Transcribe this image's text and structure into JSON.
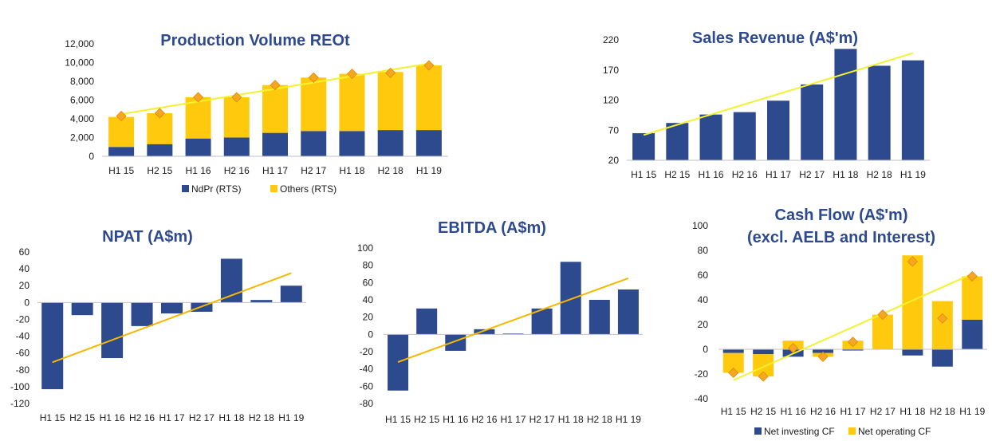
{
  "colors": {
    "navy": "#2E4A8F",
    "gold": "#FFC90E",
    "trend_yellow": "#F2F22E",
    "trend_orange": "#F5B800",
    "marker": "#F5A623"
  },
  "chart_data": [
    {
      "id": "production",
      "type": "bar",
      "stacked": true,
      "title": "Production Volume REOt",
      "categories": [
        "H1 15",
        "H2 15",
        "H1 16",
        "H2 16",
        "H1 17",
        "H2 17",
        "H1 18",
        "H2 18",
        "H1 19"
      ],
      "series": [
        {
          "name": "NdPr (RTS)",
          "color": "#2E4A8F",
          "values": [
            1000,
            1300,
            1900,
            2000,
            2500,
            2700,
            2700,
            2800,
            2800
          ]
        },
        {
          "name": "Others (RTS)",
          "color": "#FFC90E",
          "values": [
            3200,
            3300,
            4400,
            4300,
            5100,
            5700,
            6100,
            6200,
            6900
          ]
        }
      ],
      "markers": [
        4300,
        4600,
        6300,
        6300,
        7600,
        8400,
        8800,
        8900,
        9700
      ],
      "trend": [
        4500,
        9900
      ],
      "ylim": [
        0,
        12000
      ],
      "yticks": [
        "12,000",
        "10,000",
        "8,000",
        "6,000",
        "4,000",
        "2,000",
        "0"
      ],
      "ytick_values": [
        12000,
        10000,
        8000,
        6000,
        4000,
        2000,
        0
      ],
      "legend_position": "bottom"
    },
    {
      "id": "sales",
      "type": "bar",
      "title": "Sales Revenue (A$'m)",
      "categories": [
        "H1 15",
        "H2 15",
        "H1 16",
        "H2 16",
        "H1 17",
        "H2 17",
        "H1 18",
        "H2 18",
        "H1 19"
      ],
      "values": [
        65,
        82,
        96,
        100,
        119,
        146,
        205,
        177,
        186
      ],
      "trend": [
        62,
        198
      ],
      "ylim": [
        20,
        220
      ],
      "yticks": [
        "220",
        "170",
        "120",
        "70",
        "20"
      ],
      "ytick_values": [
        220,
        170,
        120,
        70,
        20
      ]
    },
    {
      "id": "npat",
      "type": "bar",
      "title": "NPAT (A$m)",
      "categories": [
        "H1 15",
        "H2 15",
        "H1 16",
        "H2 16",
        "H1 17",
        "H2 17",
        "H1 18",
        "H2 18",
        "H1 19"
      ],
      "values": [
        -103,
        -15,
        -66,
        -28,
        -13,
        -11,
        52,
        3,
        20
      ],
      "trend": [
        -71,
        35
      ],
      "ylim": [
        -120,
        60
      ],
      "yticks": [
        "60",
        "40",
        "20",
        "0",
        "-20",
        "-40",
        "-60",
        "-80",
        "-100",
        "-120"
      ],
      "ytick_values": [
        60,
        40,
        20,
        0,
        -20,
        -40,
        -60,
        -80,
        -100,
        -120
      ]
    },
    {
      "id": "ebitda",
      "type": "bar",
      "title": "EBITDA (A$m)",
      "categories": [
        "H1 15",
        "H2 15",
        "H1 16",
        "H2 16",
        "H1 17",
        "H2 17",
        "H1 18",
        "H2 18",
        "H1 19"
      ],
      "values": [
        -65,
        30,
        -19,
        6,
        1,
        30,
        84,
        40,
        52
      ],
      "trend": [
        -32,
        65
      ],
      "ylim": [
        -80,
        100
      ],
      "yticks": [
        "100",
        "80",
        "60",
        "40",
        "20",
        "0",
        "-20",
        "-40",
        "-60",
        "-80"
      ],
      "ytick_values": [
        100,
        80,
        60,
        40,
        20,
        0,
        -20,
        -40,
        -60,
        -80
      ]
    },
    {
      "id": "cashflow",
      "type": "bar",
      "stacked": true,
      "title": "Cash Flow (A$'m)",
      "subtitle": "(excl. AELB and Interest)",
      "categories": [
        "H1 15",
        "H2 15",
        "H1 16",
        "H2 16",
        "H1 17",
        "H2 17",
        "H1 18",
        "H2 18",
        "H1 19"
      ],
      "series": [
        {
          "name": "Net investing CF",
          "color": "#2E4A8F",
          "values": [
            -3,
            -4,
            -6,
            -3,
            -1,
            0,
            -5,
            -14,
            24
          ]
        },
        {
          "name": "Net operating CF",
          "color": "#FFC90E",
          "values": [
            -16,
            -18,
            7,
            -3,
            7,
            28,
            76,
            39,
            35
          ]
        }
      ],
      "markers": [
        -19,
        -22,
        1,
        -6,
        6,
        28,
        71,
        25,
        59
      ],
      "trend": [
        -25,
        61
      ],
      "ylim": [
        -40,
        100
      ],
      "yticks": [
        "100",
        "80",
        "60",
        "40",
        "20",
        "0",
        "-20",
        "-40"
      ],
      "ytick_values": [
        100,
        80,
        60,
        40,
        20,
        0,
        -20,
        -40
      ],
      "legend_position": "bottom"
    }
  ]
}
